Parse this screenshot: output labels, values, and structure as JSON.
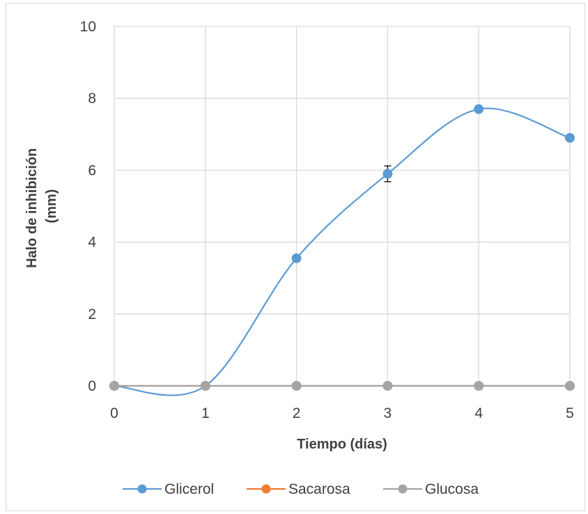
{
  "chart_data": {
    "type": "line",
    "smooth": true,
    "xlabel": "Tiempo (días)",
    "ylabel_lines": [
      "Halo de inhibición",
      "(mm)"
    ],
    "x": [
      0,
      1,
      2,
      3,
      4,
      5
    ],
    "x_tick_labels": [
      "0",
      "1",
      "2",
      "3",
      "4",
      "5"
    ],
    "y_tick_labels": [
      "0",
      "2",
      "4",
      "6",
      "8",
      "10"
    ],
    "xlim": [
      0,
      5
    ],
    "ylim": [
      0,
      10
    ],
    "grid": true,
    "legend_position": "bottom",
    "series": [
      {
        "name": "Glicerol",
        "color": "#5b9bd5",
        "values": [
          0,
          0,
          3.55,
          5.9,
          7.7,
          6.9
        ],
        "error": [
          0,
          0,
          0,
          0.22,
          0,
          0
        ]
      },
      {
        "name": "Sacarosa",
        "color": "#ed7d31",
        "values": [
          0,
          0,
          0,
          0,
          0,
          0
        ]
      },
      {
        "name": "Glucosa",
        "color": "#a5a5a5",
        "values": [
          0,
          0,
          0,
          0,
          0,
          0
        ]
      }
    ]
  },
  "colors": {
    "grid": "#d9d9d9",
    "text": "#404040",
    "frame": "#d9d9d9"
  }
}
